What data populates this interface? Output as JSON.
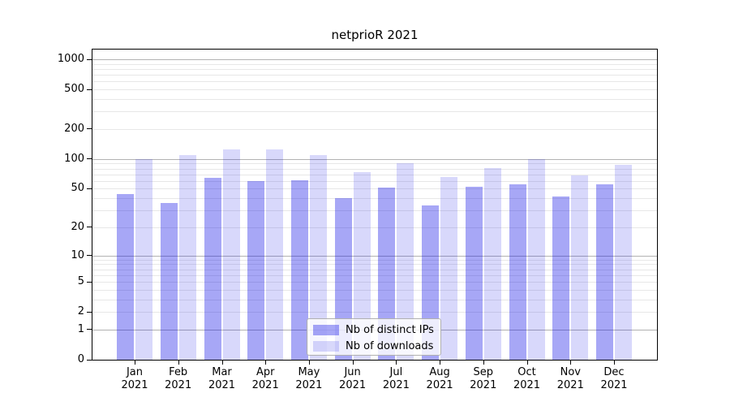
{
  "figure": {
    "title": "netprioR 2021"
  },
  "chart_data": {
    "type": "bar",
    "title": "netprioR 2021",
    "x": [
      "Jan 2021",
      "Feb 2021",
      "Mar 2021",
      "Apr 2021",
      "May 2021",
      "Jun 2021",
      "Jul 2021",
      "Aug 2021",
      "Sep 2021",
      "Oct 2021",
      "Nov 2021",
      "Dec 2021"
    ],
    "month_labels": [
      "Jan",
      "Feb",
      "Mar",
      "Apr",
      "May",
      "Jun",
      "Jul",
      "Aug",
      "Sep",
      "Oct",
      "Nov",
      "Dec"
    ],
    "year_label": "2021",
    "series": [
      {
        "name": "Nb of distinct IPs",
        "color": "rgba(10,10,230,0.36)",
        "key": "distinct-ips",
        "values": [
          44,
          36,
          65,
          60,
          61,
          40,
          51,
          34,
          52,
          55,
          42,
          55
        ]
      },
      {
        "name": "Nb of downloads",
        "color": "rgba(10,10,230,0.16)",
        "key": "downloads",
        "values": [
          100,
          110,
          125,
          125,
          110,
          74,
          91,
          66,
          81,
          100,
          68,
          87
        ]
      }
    ],
    "y_ticks": [
      0,
      1,
      2,
      5,
      10,
      20,
      50,
      100,
      200,
      500,
      1000
    ],
    "y_scale": "log1p",
    "ylim": [
      0,
      1276
    ],
    "grid": "both",
    "legend_position": "lower center inside",
    "colors": {
      "grid_major": "#b2b2b2",
      "grid_minor": "#e7e7e7",
      "spine": "#000000",
      "background": "#ffffff"
    }
  }
}
